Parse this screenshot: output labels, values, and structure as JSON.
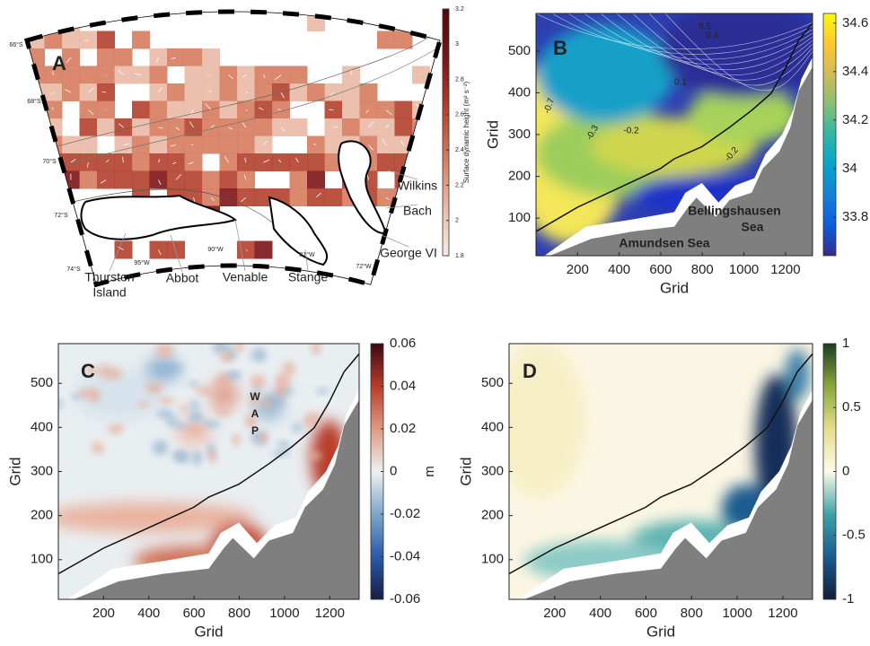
{
  "chart_data": [
    {
      "type": "map",
      "panel_label": "A",
      "colorbar": {
        "label": "Surface dynamic height (m² s⁻²)",
        "clim": [
          1.8,
          3.2
        ],
        "ticks": [
          1.8,
          2,
          2.2,
          2.4,
          2.6,
          2.8,
          3,
          3.2
        ],
        "colors": [
          "#f6ebe6",
          "#e9b9a5",
          "#d67b5e",
          "#b3402c",
          "#7c1418",
          "#4d0a0c"
        ]
      },
      "lat_labels": [
        "66°S",
        "68°S",
        "70°S",
        "72°S",
        "74°S"
      ],
      "lon_labels": [
        "95°W",
        "90°W",
        "81°W",
        "72°W"
      ],
      "place_names": [
        [
          "Thurston",
          "Island"
        ],
        [
          "Abbot"
        ],
        [
          "Venable"
        ],
        [
          "Stange"
        ],
        [
          "George VI"
        ],
        [
          "Bach"
        ],
        [
          "Wilkins"
        ]
      ]
    },
    {
      "type": "heatmap",
      "panel_label": "B",
      "xlabel": "Grid",
      "ylabel": "Grid",
      "xlim": [
        0,
        1330
      ],
      "ylim": [
        10,
        590
      ],
      "xticks": [
        200,
        400,
        600,
        800,
        1000,
        1200
      ],
      "yticks": [
        100,
        200,
        300,
        400,
        500
      ],
      "colorbar": {
        "clim": [
          33.64,
          34.64
        ],
        "ticks": [
          33.8,
          34,
          34.2,
          34.4,
          34.6
        ],
        "colors": [
          "#352a87",
          "#0f5cdd",
          "#1481d6",
          "#06a4ca",
          "#2eb7a4",
          "#87bf77",
          "#d1bb59",
          "#fec832",
          "#f9fb0e"
        ]
      },
      "contour_labels": [
        "-0.7",
        "-0.3",
        "-0.2",
        "0.1",
        "0.5",
        "0.4",
        "-0.2"
      ],
      "annotations": [
        [
          "Bellingshausen",
          "Sea"
        ],
        [
          "Amundsen Sea"
        ]
      ]
    },
    {
      "type": "heatmap",
      "panel_label": "C",
      "xlabel": "Grid",
      "ylabel": "Grid",
      "xlim": [
        0,
        1330
      ],
      "ylim": [
        10,
        590
      ],
      "xticks": [
        200,
        400,
        600,
        800,
        1000,
        1200
      ],
      "yticks": [
        100,
        200,
        300,
        400,
        500
      ],
      "colorbar": {
        "label": "m",
        "clim": [
          -0.06,
          0.06
        ],
        "ticks": [
          -0.06,
          -0.04,
          -0.02,
          0,
          0.02,
          0.04,
          0.06
        ],
        "colors": [
          "#181c43",
          "#2a5aa8",
          "#7ea6c9",
          "#eef0f1",
          "#dd9a85",
          "#b83c2c",
          "#3c0912"
        ]
      },
      "annotations": [
        [
          "W",
          "A",
          "P"
        ]
      ]
    },
    {
      "type": "heatmap",
      "panel_label": "D",
      "xlabel": "Grid",
      "ylabel": "Grid",
      "xlim": [
        0,
        1330
      ],
      "ylim": [
        10,
        590
      ],
      "xticks": [
        200,
        400,
        600,
        800,
        1000,
        1200
      ],
      "yticks": [
        100,
        200,
        300,
        400,
        500
      ],
      "colorbar": {
        "clim": [
          -1,
          1
        ],
        "ticks": [
          -1,
          -0.5,
          0,
          0.5,
          1
        ],
        "colors": [
          "#111f38",
          "#1b5b8f",
          "#3fa3a8",
          "#fefbe8",
          "#e6dd8d",
          "#8aa83a",
          "#1a3d1f"
        ]
      }
    }
  ]
}
